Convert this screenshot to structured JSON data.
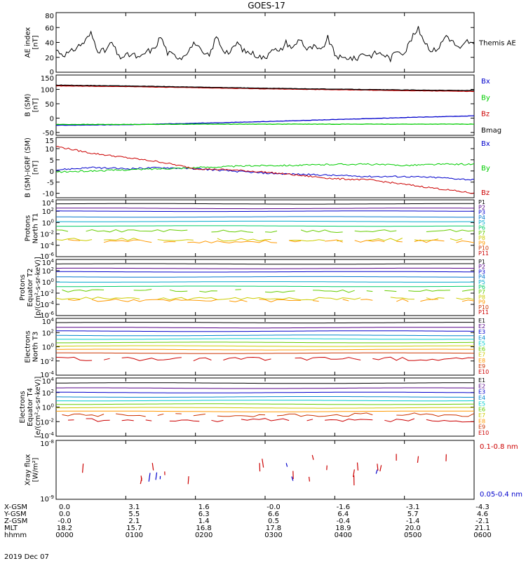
{
  "title": "GOES-17",
  "date": "2019 Dec 07",
  "chart_data": [
    {
      "type": "line",
      "panel": "ae",
      "ylabel": [
        "AE index",
        "[nT]"
      ],
      "ylim": [
        0,
        80
      ],
      "yticks": [
        "80",
        "60",
        "40",
        "20",
        "0"
      ],
      "xlim": [
        0,
        6
      ],
      "grid": false,
      "legend": [
        {
          "name": "Themis AE",
          "color": "#000000"
        }
      ],
      "series": [
        {
          "name": "Themis AE",
          "color": "#000000",
          "x": [
            0,
            0.1,
            0.2,
            0.3,
            0.4,
            0.5,
            0.6,
            0.7,
            0.8,
            0.9,
            1.0,
            1.1,
            1.2,
            1.3,
            1.4,
            1.5,
            1.6,
            1.7,
            1.8,
            1.9,
            2.0,
            2.1,
            2.2,
            2.3,
            2.4,
            2.5,
            2.6,
            2.7,
            2.8,
            2.9,
            3.0,
            3.1,
            3.2,
            3.3,
            3.4,
            3.5,
            3.6,
            3.7,
            3.8,
            3.9,
            4.0,
            4.1,
            4.2,
            4.3,
            4.4,
            4.5,
            4.6,
            4.7,
            4.8,
            4.9,
            5.0,
            5.1,
            5.2,
            5.3,
            5.4,
            5.5,
            5.6,
            5.7,
            5.8,
            5.9,
            6.0
          ],
          "values": [
            30,
            24,
            26,
            34,
            40,
            52,
            30,
            28,
            40,
            20,
            22,
            24,
            18,
            28,
            30,
            48,
            26,
            22,
            20,
            30,
            40,
            24,
            22,
            48,
            30,
            26,
            40,
            28,
            26,
            22,
            18,
            34,
            26,
            40,
            32,
            46,
            30,
            34,
            28,
            46,
            24,
            18,
            20,
            17,
            26,
            22,
            26,
            24,
            18,
            30,
            26,
            45,
            58,
            40,
            28,
            34,
            50,
            40,
            30,
            42,
            36
          ]
        }
      ]
    },
    {
      "type": "line",
      "panel": "b-sm",
      "ylabel": [
        "B (SM)",
        "[nT]"
      ],
      "ylim": [
        -60,
        150
      ],
      "yticks": [
        "150",
        "100",
        "50",
        "0",
        "-50"
      ],
      "xlim": [
        0,
        6
      ],
      "grid": false,
      "legend": [
        {
          "name": "Bx",
          "color": "#0000cc"
        },
        {
          "name": "By",
          "color": "#00cc00"
        },
        {
          "name": "Bz",
          "color": "#cc0000"
        },
        {
          "name": "Bmag",
          "color": "#000000"
        }
      ],
      "series": [
        {
          "name": "Bx",
          "color": "#0000cc",
          "x": [
            0,
            1,
            2,
            3,
            4,
            5,
            6
          ],
          "values": [
            -25,
            -23,
            -18,
            -12,
            -5,
            2,
            8
          ]
        },
        {
          "name": "By",
          "color": "#00cc00",
          "x": [
            0,
            1,
            2,
            3,
            4,
            5,
            6
          ],
          "values": [
            -22,
            -22,
            -21,
            -21,
            -21,
            -21,
            -21
          ]
        },
        {
          "name": "Bz",
          "color": "#cc0000",
          "x": [
            0,
            1,
            2,
            3,
            4,
            5,
            6
          ],
          "values": [
            112,
            110,
            106,
            102,
            99,
            96,
            93
          ]
        },
        {
          "name": "Bmag",
          "color": "#000000",
          "x": [
            0,
            1,
            2,
            3,
            4,
            5,
            6
          ],
          "values": [
            115,
            112,
            108,
            104,
            101,
            98,
            96
          ]
        }
      ]
    },
    {
      "type": "line",
      "panel": "b-igrf",
      "ylabel": [
        "B (SM)-IGRF (SM)",
        "[nT]"
      ],
      "ylim": [
        -12,
        15
      ],
      "yticks": [
        "15",
        "10",
        "5",
        "0",
        "-5",
        "-10"
      ],
      "xlim": [
        0,
        6
      ],
      "grid": false,
      "legend": [
        {
          "name": "Bx",
          "color": "#0000cc"
        },
        {
          "name": "By",
          "color": "#00cc00"
        },
        {
          "name": "Bz",
          "color": "#cc0000"
        }
      ],
      "series": [
        {
          "name": "Bx",
          "color": "#0000cc",
          "x": [
            0,
            0.5,
            1,
            1.5,
            2,
            2.5,
            3,
            3.5,
            4,
            4.5,
            5,
            5.5,
            6
          ],
          "values": [
            0.5,
            1.5,
            1,
            1.5,
            1,
            0,
            -1,
            -1.5,
            -2,
            -2.5,
            -2.5,
            -3,
            -4
          ]
        },
        {
          "name": "By",
          "color": "#00cc00",
          "x": [
            0,
            0.5,
            1,
            1.5,
            2,
            2.5,
            3,
            3.5,
            4,
            4.5,
            5,
            5.5,
            6
          ],
          "values": [
            -0.5,
            0,
            0.5,
            1,
            1.5,
            2,
            2.5,
            2.5,
            3,
            3,
            2.5,
            3,
            3
          ]
        },
        {
          "name": "Bz",
          "color": "#cc0000",
          "x": [
            0,
            0.5,
            1,
            1.5,
            2,
            2.5,
            3,
            3.5,
            4,
            4.5,
            5,
            5.5,
            6
          ],
          "values": [
            11,
            8,
            6,
            4,
            1,
            0.5,
            -0.5,
            -2,
            -3.5,
            -4,
            -6,
            -8,
            -10
          ]
        }
      ]
    },
    {
      "type": "line",
      "panel": "protons-t1",
      "ylabel": [
        "Protons",
        "North T1"
      ],
      "yscale": "log",
      "ylim_exp": [
        -6,
        4
      ],
      "yticks": [
        "10^4",
        "10^2",
        "10^0",
        "10^-2",
        "10^-4",
        "10^-6"
      ],
      "xlim": [
        0,
        6
      ],
      "grid": false,
      "legend": [
        {
          "name": "P1",
          "color": "#000000"
        },
        {
          "name": "P2",
          "color": "#550088"
        },
        {
          "name": "P3",
          "color": "#0000cc"
        },
        {
          "name": "P4",
          "color": "#0077cc"
        },
        {
          "name": "P5",
          "color": "#00aacc"
        },
        {
          "name": "P6",
          "color": "#00cc66"
        },
        {
          "name": "P7",
          "color": "#66cc00"
        },
        {
          "name": "P8",
          "color": "#cccc00"
        },
        {
          "name": "P9",
          "color": "#ff9900"
        },
        {
          "name": "P10",
          "color": "#cc3300"
        },
        {
          "name": "P11",
          "color": "#cc0000"
        }
      ],
      "series": [
        {
          "name": "P1",
          "color": "#000000",
          "log10": [
            3.3
          ]
        },
        {
          "name": "P2",
          "color": "#550088",
          "log10": [
            2.5
          ]
        },
        {
          "name": "P3",
          "color": "#0000cc",
          "log10": [
            2.0
          ]
        },
        {
          "name": "P4",
          "color": "#0077cc",
          "log10": [
            1.0
          ]
        },
        {
          "name": "P5",
          "color": "#00aacc",
          "log10": [
            0.2
          ]
        },
        {
          "name": "P6",
          "color": "#00cc66",
          "log10": [
            -0.6
          ]
        },
        {
          "name": "P7",
          "color": "#66cc00",
          "log10": [
            -1.5
          ]
        },
        {
          "name": "P8",
          "color": "#cccc00",
          "log10": [
            -3.0
          ]
        },
        {
          "name": "P9",
          "color": "#ff9900",
          "log10": [
            -3.3
          ]
        }
      ]
    },
    {
      "type": "line",
      "panel": "protons-t2",
      "ylabel": [
        "Protons",
        "Equator T2",
        "[p/(cm²-s-sr-keV)]"
      ],
      "yscale": "log",
      "ylim_exp": [
        -6,
        4
      ],
      "yticks": [
        "10^4",
        "10^2",
        "10^0",
        "10^-2",
        "10^-4",
        "10^-6"
      ],
      "xlim": [
        0,
        6
      ],
      "grid": false,
      "legend": [
        {
          "name": "P1",
          "color": "#000000"
        },
        {
          "name": "P2",
          "color": "#550088"
        },
        {
          "name": "P3",
          "color": "#0000cc"
        },
        {
          "name": "P4",
          "color": "#0077cc"
        },
        {
          "name": "P5",
          "color": "#00aacc"
        },
        {
          "name": "P6",
          "color": "#00cc66"
        },
        {
          "name": "P7",
          "color": "#66cc00"
        },
        {
          "name": "P8",
          "color": "#cccc00"
        },
        {
          "name": "P9",
          "color": "#ff9900"
        },
        {
          "name": "P10",
          "color": "#cc3300"
        },
        {
          "name": "P11",
          "color": "#cc0000"
        }
      ],
      "series": [
        {
          "name": "P1",
          "color": "#000000",
          "log10": [
            3.2
          ]
        },
        {
          "name": "P2",
          "color": "#550088",
          "log10": [
            2.4
          ]
        },
        {
          "name": "P3",
          "color": "#0000cc",
          "log10": [
            1.8
          ]
        },
        {
          "name": "P4",
          "color": "#0077cc",
          "log10": [
            0.9
          ]
        },
        {
          "name": "P5",
          "color": "#00aacc",
          "log10": [
            0.0
          ]
        },
        {
          "name": "P6",
          "color": "#00cc66",
          "log10": [
            -0.8
          ]
        },
        {
          "name": "P7",
          "color": "#66cc00",
          "log10": [
            -1.6
          ]
        },
        {
          "name": "P8",
          "color": "#cccc00",
          "log10": [
            -3.0
          ]
        },
        {
          "name": "P9",
          "color": "#ff9900",
          "log10": [
            -3.3
          ]
        }
      ]
    },
    {
      "type": "line",
      "panel": "electrons-t3",
      "ylabel": [
        "Electrons",
        "North T3"
      ],
      "yscale": "log",
      "ylim_exp": [
        -4,
        4
      ],
      "yticks": [
        "10^4",
        "10^2",
        "10^0",
        "10^-2",
        "10^-4"
      ],
      "xlim": [
        0,
        6
      ],
      "grid": false,
      "legend": [
        {
          "name": "E1",
          "color": "#000000"
        },
        {
          "name": "E2",
          "color": "#550088"
        },
        {
          "name": "E3",
          "color": "#0000cc"
        },
        {
          "name": "E4",
          "color": "#0088cc"
        },
        {
          "name": "E5",
          "color": "#00cccc"
        },
        {
          "name": "E6",
          "color": "#66cc00"
        },
        {
          "name": "E7",
          "color": "#cccc00"
        },
        {
          "name": "E8",
          "color": "#ff9900"
        },
        {
          "name": "E9",
          "color": "#cc3300"
        },
        {
          "name": "E10",
          "color": "#cc0000"
        }
      ],
      "series": [
        {
          "name": "E1",
          "color": "#000000",
          "log10": [
            3.4
          ]
        },
        {
          "name": "E2",
          "color": "#550088",
          "log10": [
            2.7
          ]
        },
        {
          "name": "E3",
          "color": "#0000cc",
          "log10": [
            2.2
          ]
        },
        {
          "name": "E4",
          "color": "#0088cc",
          "log10": [
            1.6
          ]
        },
        {
          "name": "E5",
          "color": "#00cccc",
          "log10": [
            1.1
          ]
        },
        {
          "name": "E6",
          "color": "#66cc00",
          "log10": [
            0.6
          ]
        },
        {
          "name": "E7",
          "color": "#cccc00",
          "log10": [
            0.1
          ]
        },
        {
          "name": "E8",
          "color": "#ff9900",
          "log10": [
            -0.4
          ]
        },
        {
          "name": "E9",
          "color": "#cc3300",
          "log10": [
            -0.9
          ]
        },
        {
          "name": "E10",
          "color": "#cc0000",
          "log10": [
            -1.7
          ]
        }
      ]
    },
    {
      "type": "line",
      "panel": "electrons-t4",
      "ylabel": [
        "Electrons",
        "Equator T4",
        "[e/(cm²-s-sr-keV)]"
      ],
      "yscale": "log",
      "ylim_exp": [
        -4,
        4
      ],
      "yticks": [
        "10^4",
        "10^2",
        "10^0",
        "10^-2",
        "10^-4"
      ],
      "xlim": [
        0,
        6
      ],
      "grid": false,
      "legend": [
        {
          "name": "E1",
          "color": "#000000"
        },
        {
          "name": "E2",
          "color": "#550088"
        },
        {
          "name": "E3",
          "color": "#0000cc"
        },
        {
          "name": "E4",
          "color": "#0088cc"
        },
        {
          "name": "E5",
          "color": "#00cccc"
        },
        {
          "name": "E6",
          "color": "#66cc00"
        },
        {
          "name": "E7",
          "color": "#cccc00"
        },
        {
          "name": "E8",
          "color": "#ff9900"
        },
        {
          "name": "E9",
          "color": "#cc3300"
        },
        {
          "name": "E10",
          "color": "#cc0000"
        }
      ],
      "series": [
        {
          "name": "E1",
          "color": "#000000",
          "log10": [
            3.3
          ]
        },
        {
          "name": "E2",
          "color": "#550088",
          "log10": [
            2.6
          ]
        },
        {
          "name": "E3",
          "color": "#0000cc",
          "log10": [
            2.0
          ]
        },
        {
          "name": "E4",
          "color": "#0088cc",
          "log10": [
            1.4
          ]
        },
        {
          "name": "E5",
          "color": "#00cccc",
          "log10": [
            0.9
          ]
        },
        {
          "name": "E6",
          "color": "#66cc00",
          "log10": [
            0.4
          ]
        },
        {
          "name": "E7",
          "color": "#cccc00",
          "log10": [
            -0.1
          ]
        },
        {
          "name": "E8",
          "color": "#ff9900",
          "log10": [
            -0.6
          ]
        },
        {
          "name": "E9",
          "color": "#cc3300",
          "log10": [
            -1.1
          ]
        },
        {
          "name": "E10",
          "color": "#cc0000",
          "log10": [
            -1.8
          ]
        }
      ]
    },
    {
      "type": "line",
      "panel": "xray",
      "ylabel": [
        "Xray flux",
        "[W/m²]"
      ],
      "yscale": "log",
      "ylim_exp": [
        -9,
        -8
      ],
      "yticks": [
        "10^-8",
        "10^-9"
      ],
      "xlim": [
        0,
        6
      ],
      "grid": false,
      "legend": [
        {
          "name": "0.1-0.8 nm",
          "color": "#cc0000"
        },
        {
          "name": "0.05-0.4 nm",
          "color": "#0000cc"
        }
      ]
    }
  ],
  "ephemeris": {
    "labels": [
      "X-GSM",
      "Y-GSM",
      "Z-GSM",
      "MLT",
      "hhmm"
    ],
    "columns": [
      [
        "0.0",
        "0.0",
        "-0.0",
        "18.2",
        "0000"
      ],
      [
        "3.1",
        "5.5",
        "2.1",
        "15.7",
        "0100"
      ],
      [
        "1.6",
        "6.3",
        "1.4",
        "16.8",
        "0200"
      ],
      [
        "-0.0",
        "6.6",
        "0.5",
        "17.8",
        "0300"
      ],
      [
        "-1.6",
        "6.4",
        "-0.4",
        "18.9",
        "0400"
      ],
      [
        "-3.1",
        "5.7",
        "-1.4",
        "20.0",
        "0500"
      ],
      [
        "-4.3",
        "4.6",
        "-2.1",
        "21.1",
        "0600"
      ]
    ]
  }
}
